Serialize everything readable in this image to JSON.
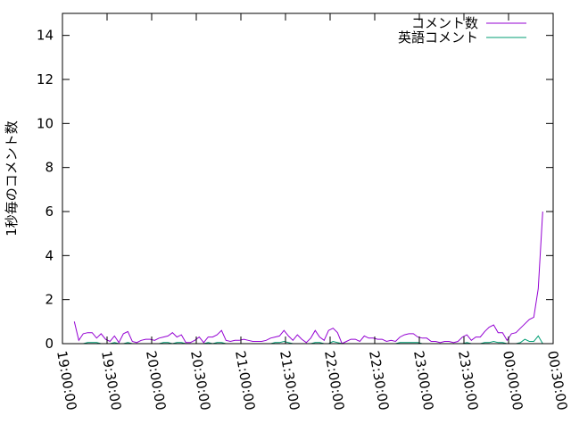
{
  "chart_data": {
    "type": "line",
    "title": "",
    "xlabel": "",
    "ylabel": "1秒毎のコメント数",
    "ylim": [
      0,
      15
    ],
    "yticks": [
      0,
      2,
      4,
      6,
      8,
      10,
      12,
      14
    ],
    "xlim": [
      "19:00:00",
      "00:30:00"
    ],
    "xticks": [
      "19:00:00",
      "19:30:00",
      "20:00:00",
      "20:30:00",
      "21:00:00",
      "21:30:00",
      "22:00:00",
      "22:30:00",
      "23:00:00",
      "23:30:00",
      "00:00:00",
      "00:30:00"
    ],
    "x_start": "19:08:00",
    "x_step_minutes": 3,
    "grid": false,
    "legend_position": "top-right",
    "series": [
      {
        "name": "コメント数",
        "color": "#9400d3",
        "values": [
          1.0,
          0.15,
          0.45,
          0.5,
          0.5,
          0.25,
          0.45,
          0.2,
          0.1,
          0.35,
          0.05,
          0.45,
          0.55,
          0.1,
          0.05,
          0.15,
          0.2,
          0.2,
          0.15,
          0.25,
          0.3,
          0.35,
          0.5,
          0.3,
          0.4,
          0.05,
          0.05,
          0.15,
          0.3,
          0.05,
          0.3,
          0.3,
          0.4,
          0.6,
          0.15,
          0.1,
          0.15,
          0.15,
          0.2,
          0.15,
          0.1,
          0.1,
          0.1,
          0.15,
          0.25,
          0.3,
          0.35,
          0.6,
          0.35,
          0.15,
          0.4,
          0.2,
          0.05,
          0.25,
          0.6,
          0.3,
          0.15,
          0.6,
          0.7,
          0.5,
          0.0,
          0.1,
          0.2,
          0.2,
          0.1,
          0.35,
          0.25,
          0.25,
          0.2,
          0.2,
          0.1,
          0.15,
          0.1,
          0.3,
          0.4,
          0.45,
          0.45,
          0.3,
          0.25,
          0.25,
          0.1,
          0.1,
          0.05,
          0.1,
          0.1,
          0.05,
          0.1,
          0.3,
          0.4,
          0.15,
          0.3,
          0.3,
          0.55,
          0.75,
          0.85,
          0.5,
          0.5,
          0.15,
          0.45,
          0.5,
          0.7,
          0.9,
          1.1,
          1.2,
          2.5,
          6.0
        ]
      },
      {
        "name": "英語コメント",
        "color": "#009e73",
        "values": [
          0,
          0,
          0,
          0.05,
          0.05,
          0.05,
          0,
          0,
          0,
          0.05,
          0,
          0,
          0.05,
          0,
          0,
          0,
          0,
          0,
          0,
          0,
          0.05,
          0.05,
          0,
          0.05,
          0.05,
          0,
          0,
          0,
          0,
          0,
          0.05,
          0,
          0.05,
          0.05,
          0,
          0,
          0,
          0,
          0,
          0,
          0,
          0,
          0,
          0,
          0,
          0.05,
          0.05,
          0.1,
          0.05,
          0,
          0,
          0,
          0,
          0,
          0.05,
          0.05,
          0,
          0,
          0.1,
          0.05,
          0,
          0,
          0,
          0,
          0,
          0,
          0,
          0,
          0,
          0,
          0,
          0,
          0,
          0.05,
          0.05,
          0.05,
          0.05,
          0.05,
          0,
          0,
          0,
          0,
          0,
          0,
          0,
          0,
          0,
          0,
          0.05,
          0,
          0,
          0,
          0.05,
          0.05,
          0.1,
          0.05,
          0.05,
          0,
          0,
          0,
          0.05,
          0.2,
          0.1,
          0.1,
          0.35,
          0.0
        ]
      }
    ]
  }
}
